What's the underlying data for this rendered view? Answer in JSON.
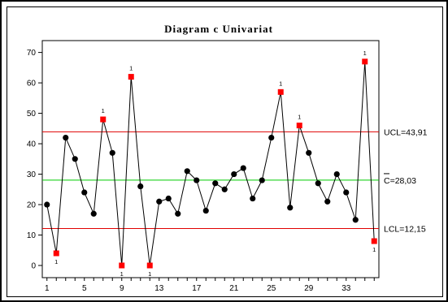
{
  "chart_data": {
    "type": "line",
    "title": "Diagram c Univariat",
    "xlabel": "",
    "ylabel": "",
    "xlim": [
      1,
      36
    ],
    "ylim": [
      0,
      70
    ],
    "x_ticks": [
      1,
      5,
      9,
      13,
      17,
      21,
      25,
      29,
      33
    ],
    "y_ticks": [
      0,
      10,
      20,
      30,
      40,
      50,
      60,
      70
    ],
    "x": [
      1,
      2,
      3,
      4,
      5,
      6,
      7,
      8,
      9,
      10,
      11,
      12,
      13,
      14,
      15,
      16,
      17,
      18,
      19,
      20,
      21,
      22,
      23,
      24,
      25,
      26,
      27,
      28,
      29,
      30,
      31,
      32,
      33,
      34,
      35,
      36
    ],
    "values": [
      20,
      4,
      42,
      35,
      24,
      17,
      48,
      37,
      0,
      62,
      26,
      0,
      21,
      22,
      17,
      31,
      28,
      18,
      27,
      25,
      30,
      32,
      22,
      28,
      42,
      57,
      19,
      46,
      37,
      27,
      21,
      30,
      24,
      15,
      67,
      8
    ],
    "out_of_control": [
      2,
      7,
      9,
      10,
      12,
      26,
      28,
      35,
      36
    ],
    "flag_label": "1",
    "limits": [
      {
        "name": "UCL",
        "value": 43.91,
        "label": "UCL=43,91",
        "color": "#e00000"
      },
      {
        "name": "CL",
        "value": 28.03,
        "label": "C=28,03",
        "color": "#00cc00"
      },
      {
        "name": "LCL",
        "value": 12.15,
        "label": "LCL=12,15",
        "color": "#e00000"
      }
    ],
    "point_color": "#000000",
    "flag_color": "#ff0000",
    "line_color": "#000000",
    "grid": false
  }
}
